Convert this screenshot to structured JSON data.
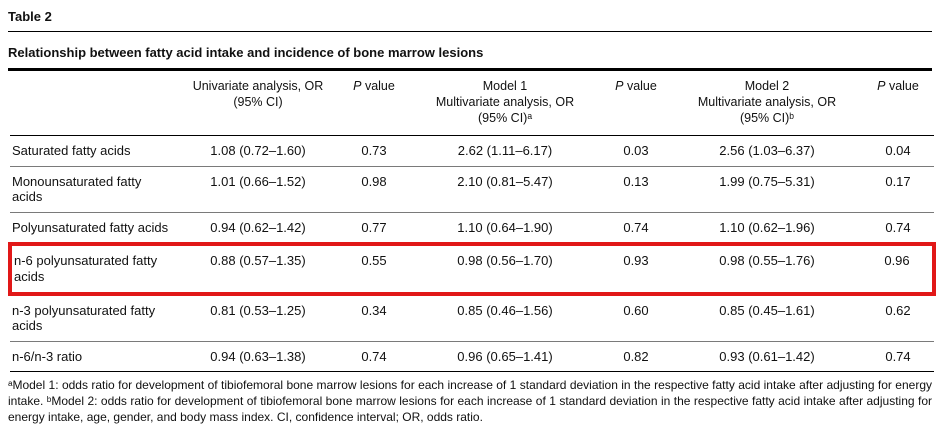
{
  "page": {
    "table_label": "Table 2"
  },
  "chart_data": {
    "type": "table",
    "title": "Relationship between fatty acid intake and incidence of bone marrow lesions",
    "columns": [
      "",
      "Univariate analysis, OR\n(95% CI)",
      "P value",
      "Model 1\nMultivariate analysis, OR\n(95% CI)ᵃ",
      "P value",
      "Model 2\nMultivariate analysis, OR\n(95% CI)ᵇ",
      "P value"
    ],
    "p_header": {
      "italic": "P",
      "rest": " value"
    },
    "rows": [
      {
        "label": "Saturated fatty acids",
        "cells": [
          "1.08 (0.72–1.60)",
          "0.73",
          "2.62 (1.11–6.17)",
          "0.03",
          "2.56 (1.03–6.37)",
          "0.04"
        ]
      },
      {
        "label": "Monounsaturated fatty acids",
        "cells": [
          "1.01 (0.66–1.52)",
          "0.98",
          "2.10 (0.81–5.47)",
          "0.13",
          "1.99 (0.75–5.31)",
          "0.17"
        ]
      },
      {
        "label": "Polyunsaturated fatty acids",
        "cells": [
          "0.94 (0.62–1.42)",
          "0.77",
          "1.10 (0.64–1.90)",
          "0.74",
          "1.10 (0.62–1.96)",
          "0.74"
        ]
      },
      {
        "label": "n-6 polyunsaturated fatty acids",
        "cells": [
          "0.88 (0.57–1.35)",
          "0.55",
          "0.98 (0.56–1.70)",
          "0.93",
          "0.98 (0.55–1.76)",
          "0.96"
        ],
        "highlighted": true
      },
      {
        "label": "n-3 polyunsaturated fatty acids",
        "cells": [
          "0.81 (0.53–1.25)",
          "0.34",
          "0.85 (0.46–1.56)",
          "0.60",
          "0.85 (0.45–1.61)",
          "0.62"
        ]
      },
      {
        "label": "n-6/n-3 ratio",
        "cells": [
          "0.94 (0.63–1.38)",
          "0.74",
          "0.96 (0.65–1.41)",
          "0.82",
          "0.93 (0.61–1.42)",
          "0.74"
        ]
      }
    ],
    "highlighted_row_index": 3,
    "highlight_color": "#e11818",
    "footnote": "ᵃModel 1: odds ratio for development of tibiofemoral bone marrow lesions for each increase of 1 standard deviation in the respective fatty acid intake after adjusting for energy intake. ᵇModel 2: odds ratio for development of tibiofemoral bone marrow lesions for each increase of 1 standard deviation in the respective fatty acid intake after adjusting for energy intake, age, gender, and body mass index. CI, confidence interval; OR, odds ratio."
  }
}
